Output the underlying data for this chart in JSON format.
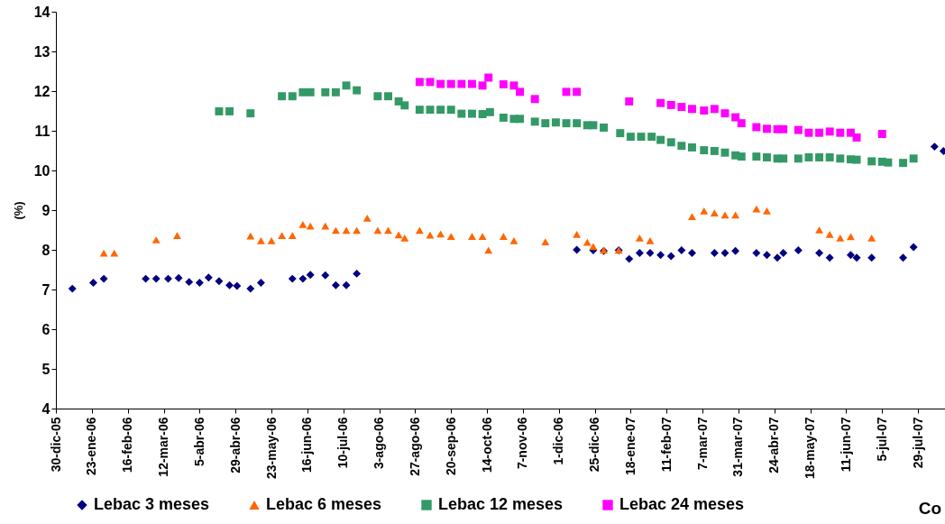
{
  "chart_data": {
    "type": "scatter",
    "ylabel": "(%)",
    "ylim": [
      4,
      14
    ],
    "yticks": [
      4,
      5,
      6,
      7,
      8,
      9,
      10,
      11,
      12,
      13,
      14
    ],
    "xlim": [
      "2005-12-30",
      "2007-08-16"
    ],
    "xticks": [
      {
        "value": "2005-12-30",
        "label": "30-dic-05"
      },
      {
        "value": "2006-01-23",
        "label": "23-ene-06"
      },
      {
        "value": "2006-02-16",
        "label": "16-feb-06"
      },
      {
        "value": "2006-03-12",
        "label": "12-mar-06"
      },
      {
        "value": "2006-04-05",
        "label": "5-abr-06"
      },
      {
        "value": "2006-04-29",
        "label": "29-abr-06"
      },
      {
        "value": "2006-05-23",
        "label": "23-may-06"
      },
      {
        "value": "2006-06-16",
        "label": "16-jun-06"
      },
      {
        "value": "2006-07-10",
        "label": "10-jul-06"
      },
      {
        "value": "2006-08-03",
        "label": "3-ago-06"
      },
      {
        "value": "2006-08-27",
        "label": "27-ago-06"
      },
      {
        "value": "2006-09-20",
        "label": "20-sep-06"
      },
      {
        "value": "2006-10-14",
        "label": "14-oct-06"
      },
      {
        "value": "2006-11-07",
        "label": "7-nov-06"
      },
      {
        "value": "2006-12-01",
        "label": "1-dic-06"
      },
      {
        "value": "2006-12-25",
        "label": "25-dic-06"
      },
      {
        "value": "2007-01-18",
        "label": "18-ene-07"
      },
      {
        "value": "2007-02-11",
        "label": "11-feb-07"
      },
      {
        "value": "2007-03-07",
        "label": "7-mar-07"
      },
      {
        "value": "2007-03-31",
        "label": "31-mar-07"
      },
      {
        "value": "2007-04-24",
        "label": "24-abr-07"
      },
      {
        "value": "2007-05-18",
        "label": "18-may-07"
      },
      {
        "value": "2007-06-11",
        "label": "11-jun-07"
      },
      {
        "value": "2007-07-05",
        "label": "5-jul-07"
      },
      {
        "value": "2007-07-29",
        "label": "29-jul-07"
      }
    ],
    "grid": false,
    "legend": "bottom",
    "annotations": [
      "Co"
    ],
    "series": [
      {
        "name": "Lebac 3 meses",
        "color": "#000080",
        "marker": "diamond",
        "x": [
          "2006-01-10",
          "2006-01-24",
          "2006-01-31",
          "2006-02-28",
          "2006-03-07",
          "2006-03-15",
          "2006-03-22",
          "2006-03-29",
          "2006-04-05",
          "2006-04-11",
          "2006-04-18",
          "2006-04-25",
          "2006-04-30",
          "2006-05-09",
          "2006-05-16",
          "2006-06-06",
          "2006-06-13",
          "2006-06-18",
          "2006-06-28",
          "2006-07-05",
          "2006-07-12",
          "2006-07-19",
          "2006-12-13",
          "2006-12-24",
          "2006-12-31",
          "2007-01-10",
          "2007-01-17",
          "2007-01-24",
          "2007-01-31",
          "2007-02-07",
          "2007-02-14",
          "2007-02-21",
          "2007-02-28",
          "2007-03-15",
          "2007-03-22",
          "2007-03-29",
          "2007-04-12",
          "2007-04-19",
          "2007-04-26",
          "2007-04-30",
          "2007-05-10",
          "2007-05-24",
          "2007-05-31",
          "2007-06-14",
          "2007-06-18",
          "2007-06-28",
          "2007-07-19",
          "2007-07-26",
          "2007-08-09",
          "2007-08-15"
        ],
        "values": [
          7.02,
          7.17,
          7.27,
          7.27,
          7.27,
          7.27,
          7.29,
          7.19,
          7.17,
          7.3,
          7.21,
          7.11,
          7.09,
          7.02,
          7.17,
          7.27,
          7.27,
          7.37,
          7.36,
          7.11,
          7.11,
          7.4,
          8.0,
          7.99,
          7.97,
          7.99,
          7.77,
          7.92,
          7.92,
          7.87,
          7.84,
          7.99,
          7.92,
          7.92,
          7.92,
          7.97,
          7.92,
          7.87,
          7.8,
          7.92,
          7.99,
          7.92,
          7.8,
          7.87,
          7.8,
          7.8,
          7.8,
          8.07,
          10.6,
          10.49
        ]
      },
      {
        "name": "Lebac 6 meses",
        "color": "#ff6600",
        "marker": "triangle",
        "x": [
          "2006-01-31",
          "2006-02-07",
          "2006-03-07",
          "2006-03-21",
          "2006-05-09",
          "2006-05-16",
          "2006-05-23",
          "2006-05-30",
          "2006-06-06",
          "2006-06-13",
          "2006-06-18",
          "2006-06-28",
          "2006-07-05",
          "2006-07-12",
          "2006-07-19",
          "2006-07-26",
          "2006-08-02",
          "2006-08-09",
          "2006-08-16",
          "2006-08-20",
          "2006-08-30",
          "2006-09-06",
          "2006-09-13",
          "2006-09-20",
          "2006-10-04",
          "2006-10-11",
          "2006-10-15",
          "2006-10-25",
          "2006-11-01",
          "2006-11-22",
          "2006-12-13",
          "2006-12-20",
          "2006-12-24",
          "2006-12-31",
          "2007-01-10",
          "2007-01-24",
          "2007-01-31",
          "2007-02-28",
          "2007-03-08",
          "2007-03-15",
          "2007-03-22",
          "2007-03-29",
          "2007-04-12",
          "2007-04-19",
          "2007-05-24",
          "2007-05-31",
          "2007-06-07",
          "2007-06-14",
          "2007-06-28"
        ],
        "values": [
          7.92,
          7.92,
          8.25,
          8.36,
          8.35,
          8.23,
          8.23,
          8.36,
          8.36,
          8.64,
          8.6,
          8.6,
          8.49,
          8.49,
          8.49,
          8.8,
          8.49,
          8.49,
          8.38,
          8.3,
          8.49,
          8.37,
          8.4,
          8.34,
          8.34,
          8.34,
          7.99,
          8.34,
          8.23,
          8.2,
          8.39,
          8.19,
          8.08,
          7.99,
          7.99,
          8.3,
          8.23,
          8.84,
          8.98,
          8.93,
          8.88,
          8.88,
          9.03,
          8.98,
          8.5,
          8.39,
          8.3,
          8.33,
          8.3
        ]
      },
      {
        "name": "Lebac 12 meses",
        "color": "#339966",
        "marker": "square",
        "x": [
          "2006-04-18",
          "2006-04-25",
          "2006-05-09",
          "2006-05-30",
          "2006-06-06",
          "2006-06-13",
          "2006-06-18",
          "2006-06-28",
          "2006-07-05",
          "2006-07-12",
          "2006-07-19",
          "2006-08-02",
          "2006-08-09",
          "2006-08-16",
          "2006-08-20",
          "2006-08-30",
          "2006-09-06",
          "2006-09-13",
          "2006-09-20",
          "2006-09-27",
          "2006-10-04",
          "2006-10-11",
          "2006-10-16",
          "2006-10-25",
          "2006-11-01",
          "2006-11-05",
          "2006-11-15",
          "2006-11-22",
          "2006-11-29",
          "2006-12-06",
          "2006-12-13",
          "2006-12-20",
          "2006-12-24",
          "2006-12-31",
          "2007-01-11",
          "2007-01-18",
          "2007-01-25",
          "2007-02-01",
          "2007-02-07",
          "2007-02-14",
          "2007-02-21",
          "2007-02-28",
          "2007-03-08",
          "2007-03-15",
          "2007-03-22",
          "2007-03-29",
          "2007-04-02",
          "2007-04-12",
          "2007-04-19",
          "2007-04-26",
          "2007-04-30",
          "2007-05-10",
          "2007-05-17",
          "2007-05-24",
          "2007-05-31",
          "2007-06-07",
          "2007-06-14",
          "2007-06-18",
          "2007-06-28",
          "2007-07-05",
          "2007-07-09",
          "2007-07-19",
          "2007-07-26"
        ],
        "values": [
          11.49,
          11.49,
          11.44,
          11.87,
          11.87,
          11.97,
          11.97,
          11.97,
          11.97,
          12.14,
          12.02,
          11.87,
          11.87,
          11.74,
          11.64,
          11.53,
          11.53,
          11.53,
          11.53,
          11.43,
          11.43,
          11.42,
          11.47,
          11.33,
          11.3,
          11.3,
          11.23,
          11.19,
          11.21,
          11.19,
          11.19,
          11.14,
          11.14,
          11.08,
          10.94,
          10.85,
          10.85,
          10.85,
          10.77,
          10.71,
          10.62,
          10.58,
          10.51,
          10.49,
          10.45,
          10.38,
          10.35,
          10.35,
          10.33,
          10.3,
          10.3,
          10.3,
          10.33,
          10.33,
          10.33,
          10.3,
          10.28,
          10.27,
          10.23,
          10.22,
          10.2,
          10.19,
          10.3
        ]
      },
      {
        "name": "Lebac 24 meses",
        "color": "#ff00ff",
        "marker": "square",
        "x": [
          "2006-08-30",
          "2006-09-06",
          "2006-09-13",
          "2006-09-20",
          "2006-09-27",
          "2006-10-04",
          "2006-10-11",
          "2006-10-15",
          "2006-10-25",
          "2006-11-01",
          "2006-11-05",
          "2006-11-15",
          "2006-12-06",
          "2006-12-13",
          "2007-01-17",
          "2007-02-07",
          "2007-02-14",
          "2007-02-21",
          "2007-02-28",
          "2007-03-08",
          "2007-03-15",
          "2007-03-22",
          "2007-03-29",
          "2007-04-02",
          "2007-04-12",
          "2007-04-19",
          "2007-04-26",
          "2007-04-30",
          "2007-05-10",
          "2007-05-17",
          "2007-05-24",
          "2007-05-31",
          "2007-06-07",
          "2007-06-14",
          "2007-06-18",
          "2007-07-05"
        ],
        "values": [
          12.23,
          12.23,
          12.18,
          12.18,
          12.18,
          12.18,
          12.14,
          12.34,
          12.17,
          12.14,
          11.98,
          11.8,
          11.98,
          11.98,
          11.74,
          11.7,
          11.65,
          11.6,
          11.55,
          11.51,
          11.55,
          11.44,
          11.34,
          11.19,
          11.09,
          11.05,
          11.04,
          11.04,
          11.02,
          10.95,
          10.95,
          10.98,
          10.95,
          10.95,
          10.83,
          10.92
        ]
      }
    ]
  }
}
